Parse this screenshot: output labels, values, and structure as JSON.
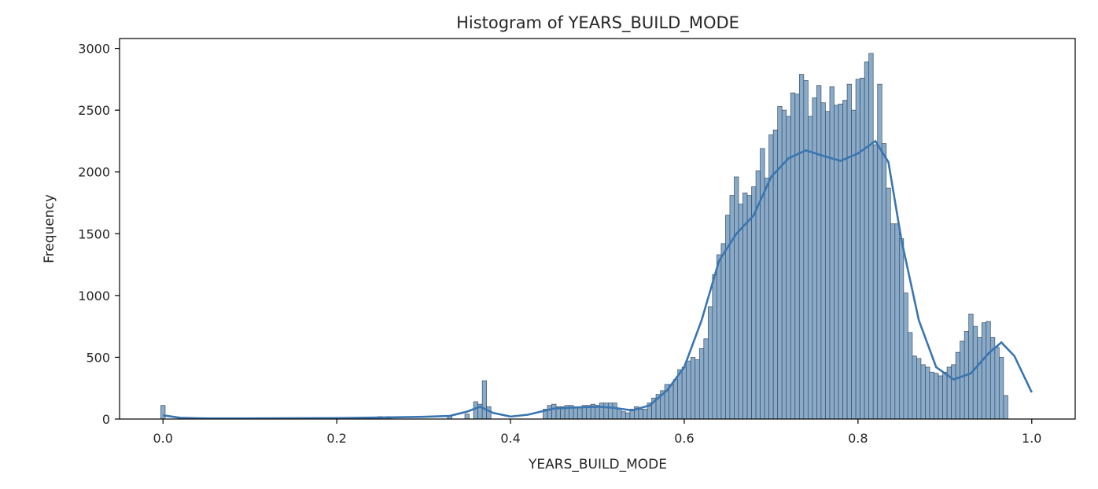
{
  "chart_data": {
    "type": "bar",
    "title": "Histogram of YEARS_BUILD_MODE",
    "xlabel": "YEARS_BUILD_MODE",
    "ylabel": "Frequency",
    "xlim": [
      -0.05,
      1.05
    ],
    "ylim": [
      0,
      3080
    ],
    "x_ticks": [
      0.0,
      0.2,
      0.4,
      0.6,
      0.8,
      1.0
    ],
    "x_tick_labels": [
      "0.0",
      "0.2",
      "0.4",
      "0.6",
      "0.8",
      "1.0"
    ],
    "y_ticks": [
      0,
      500,
      1000,
      1500,
      2000,
      2500,
      3000
    ],
    "y_tick_labels": [
      "0",
      "500",
      "1000",
      "1500",
      "2000",
      "2500",
      "3000"
    ],
    "grid": false,
    "bar_color": "#7fa3c4",
    "kde_color": "#3a75b0",
    "bin_width": 0.005,
    "bins": [
      {
        "x": 0.0,
        "value": 110
      },
      {
        "x": 0.25,
        "value": 20
      },
      {
        "x": 0.26,
        "value": 20
      },
      {
        "x": 0.33,
        "value": 25
      },
      {
        "x": 0.35,
        "value": 40
      },
      {
        "x": 0.36,
        "value": 140
      },
      {
        "x": 0.365,
        "value": 120
      },
      {
        "x": 0.37,
        "value": 310
      },
      {
        "x": 0.375,
        "value": 100
      },
      {
        "x": 0.44,
        "value": 80
      },
      {
        "x": 0.445,
        "value": 110
      },
      {
        "x": 0.45,
        "value": 120
      },
      {
        "x": 0.455,
        "value": 100
      },
      {
        "x": 0.46,
        "value": 100
      },
      {
        "x": 0.465,
        "value": 110
      },
      {
        "x": 0.47,
        "value": 110
      },
      {
        "x": 0.475,
        "value": 100
      },
      {
        "x": 0.48,
        "value": 90
      },
      {
        "x": 0.485,
        "value": 110
      },
      {
        "x": 0.49,
        "value": 110
      },
      {
        "x": 0.495,
        "value": 120
      },
      {
        "x": 0.5,
        "value": 110
      },
      {
        "x": 0.505,
        "value": 130
      },
      {
        "x": 0.51,
        "value": 130
      },
      {
        "x": 0.515,
        "value": 130
      },
      {
        "x": 0.52,
        "value": 130
      },
      {
        "x": 0.525,
        "value": 80
      },
      {
        "x": 0.53,
        "value": 60
      },
      {
        "x": 0.535,
        "value": 50
      },
      {
        "x": 0.54,
        "value": 80
      },
      {
        "x": 0.545,
        "value": 100
      },
      {
        "x": 0.55,
        "value": 80
      },
      {
        "x": 0.555,
        "value": 80
      },
      {
        "x": 0.56,
        "value": 130
      },
      {
        "x": 0.565,
        "value": 170
      },
      {
        "x": 0.57,
        "value": 200
      },
      {
        "x": 0.575,
        "value": 230
      },
      {
        "x": 0.58,
        "value": 280
      },
      {
        "x": 0.585,
        "value": 280
      },
      {
        "x": 0.59,
        "value": 320
      },
      {
        "x": 0.595,
        "value": 400
      },
      {
        "x": 0.6,
        "value": 420
      },
      {
        "x": 0.605,
        "value": 470
      },
      {
        "x": 0.61,
        "value": 500
      },
      {
        "x": 0.615,
        "value": 480
      },
      {
        "x": 0.62,
        "value": 570
      },
      {
        "x": 0.625,
        "value": 650
      },
      {
        "x": 0.63,
        "value": 910
      },
      {
        "x": 0.635,
        "value": 1170
      },
      {
        "x": 0.64,
        "value": 1330
      },
      {
        "x": 0.645,
        "value": 1420
      },
      {
        "x": 0.65,
        "value": 1650
      },
      {
        "x": 0.655,
        "value": 1810
      },
      {
        "x": 0.66,
        "value": 1960
      },
      {
        "x": 0.665,
        "value": 1740
      },
      {
        "x": 0.67,
        "value": 1830
      },
      {
        "x": 0.675,
        "value": 1810
      },
      {
        "x": 0.68,
        "value": 1880
      },
      {
        "x": 0.685,
        "value": 2010
      },
      {
        "x": 0.69,
        "value": 2190
      },
      {
        "x": 0.695,
        "value": 1950
      },
      {
        "x": 0.7,
        "value": 2300
      },
      {
        "x": 0.705,
        "value": 2340
      },
      {
        "x": 0.71,
        "value": 2530
      },
      {
        "x": 0.715,
        "value": 2500
      },
      {
        "x": 0.72,
        "value": 2450
      },
      {
        "x": 0.725,
        "value": 2640
      },
      {
        "x": 0.73,
        "value": 2630
      },
      {
        "x": 0.735,
        "value": 2790
      },
      {
        "x": 0.74,
        "value": 2740
      },
      {
        "x": 0.745,
        "value": 2450
      },
      {
        "x": 0.75,
        "value": 2600
      },
      {
        "x": 0.755,
        "value": 2700
      },
      {
        "x": 0.76,
        "value": 2560
      },
      {
        "x": 0.765,
        "value": 2490
      },
      {
        "x": 0.77,
        "value": 2690
      },
      {
        "x": 0.775,
        "value": 2540
      },
      {
        "x": 0.78,
        "value": 2550
      },
      {
        "x": 0.785,
        "value": 2580
      },
      {
        "x": 0.79,
        "value": 2710
      },
      {
        "x": 0.795,
        "value": 2500
      },
      {
        "x": 0.8,
        "value": 2750
      },
      {
        "x": 0.805,
        "value": 2760
      },
      {
        "x": 0.81,
        "value": 2890
      },
      {
        "x": 0.815,
        "value": 2960
      },
      {
        "x": 0.82,
        "value": 2220
      },
      {
        "x": 0.825,
        "value": 2710
      },
      {
        "x": 0.83,
        "value": 2230
      },
      {
        "x": 0.835,
        "value": 1870
      },
      {
        "x": 0.84,
        "value": 1580
      },
      {
        "x": 0.845,
        "value": 1580
      },
      {
        "x": 0.85,
        "value": 1460
      },
      {
        "x": 0.855,
        "value": 1020
      },
      {
        "x": 0.86,
        "value": 700
      },
      {
        "x": 0.865,
        "value": 510
      },
      {
        "x": 0.87,
        "value": 490
      },
      {
        "x": 0.875,
        "value": 440
      },
      {
        "x": 0.88,
        "value": 420
      },
      {
        "x": 0.885,
        "value": 380
      },
      {
        "x": 0.89,
        "value": 370
      },
      {
        "x": 0.895,
        "value": 350
      },
      {
        "x": 0.9,
        "value": 380
      },
      {
        "x": 0.905,
        "value": 420
      },
      {
        "x": 0.91,
        "value": 440
      },
      {
        "x": 0.915,
        "value": 540
      },
      {
        "x": 0.92,
        "value": 630
      },
      {
        "x": 0.925,
        "value": 710
      },
      {
        "x": 0.93,
        "value": 850
      },
      {
        "x": 0.935,
        "value": 750
      },
      {
        "x": 0.94,
        "value": 660
      },
      {
        "x": 0.945,
        "value": 780
      },
      {
        "x": 0.95,
        "value": 790
      },
      {
        "x": 0.955,
        "value": 660
      },
      {
        "x": 0.96,
        "value": 580
      },
      {
        "x": 0.965,
        "value": 500
      },
      {
        "x": 0.97,
        "value": 190
      }
    ],
    "kde": {
      "x": [
        0.0,
        0.02,
        0.05,
        0.1,
        0.2,
        0.25,
        0.3,
        0.33,
        0.35,
        0.365,
        0.38,
        0.4,
        0.42,
        0.45,
        0.48,
        0.5,
        0.52,
        0.54,
        0.56,
        0.58,
        0.6,
        0.62,
        0.64,
        0.66,
        0.68,
        0.7,
        0.72,
        0.74,
        0.76,
        0.78,
        0.8,
        0.82,
        0.835,
        0.85,
        0.87,
        0.89,
        0.91,
        0.93,
        0.95,
        0.965,
        0.98,
        1.0
      ],
      "y": [
        30,
        10,
        5,
        5,
        8,
        12,
        18,
        25,
        60,
        100,
        50,
        20,
        35,
        85,
        95,
        100,
        90,
        70,
        110,
        230,
        420,
        800,
        1280,
        1500,
        1650,
        1960,
        2110,
        2175,
        2130,
        2090,
        2150,
        2250,
        2080,
        1450,
        800,
        420,
        320,
        370,
        530,
        620,
        510,
        215
      ]
    }
  }
}
